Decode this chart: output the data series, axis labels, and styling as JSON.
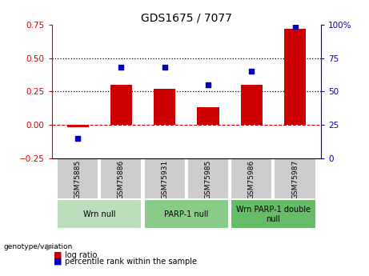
{
  "title": "GDS1675 / 7077",
  "samples": [
    "GSM75885",
    "GSM75886",
    "GSM75931",
    "GSM75985",
    "GSM75986",
    "GSM75987"
  ],
  "log_ratio": [
    -0.02,
    0.3,
    0.27,
    0.13,
    0.3,
    0.72
  ],
  "percentile_rank": [
    15,
    68,
    68,
    55,
    65,
    99
  ],
  "left_ylim": [
    -0.25,
    0.75
  ],
  "right_ylim": [
    0,
    100
  ],
  "left_yticks": [
    -0.25,
    0,
    0.25,
    0.5,
    0.75
  ],
  "right_yticks": [
    0,
    25,
    50,
    75,
    100
  ],
  "right_yticklabels": [
    "0",
    "25",
    "50",
    "75",
    "100%"
  ],
  "dotted_lines": [
    0.25,
    0.5
  ],
  "bar_color": "#cc0000",
  "dot_color": "#0000bb",
  "zero_line_color": "#cc0000",
  "groups": [
    {
      "label": "Wrn null",
      "indices": [
        0,
        1
      ],
      "color": "#bbddbb"
    },
    {
      "label": "PARP-1 null",
      "indices": [
        2,
        3
      ],
      "color": "#88cc88"
    },
    {
      "label": "Wrn PARP-1 double\nnull",
      "indices": [
        4,
        5
      ],
      "color": "#66bb66"
    }
  ],
  "legend_items": [
    {
      "label": "log ratio",
      "color": "#cc0000"
    },
    {
      "label": "percentile rank within the sample",
      "color": "#0000bb"
    }
  ],
  "sample_box_color": "#cccccc",
  "genotype_label": "genotype/variation",
  "title_fontsize": 10,
  "tick_fontsize": 7.5,
  "sample_fontsize": 6.5,
  "group_fontsize": 7,
  "legend_fontsize": 7
}
